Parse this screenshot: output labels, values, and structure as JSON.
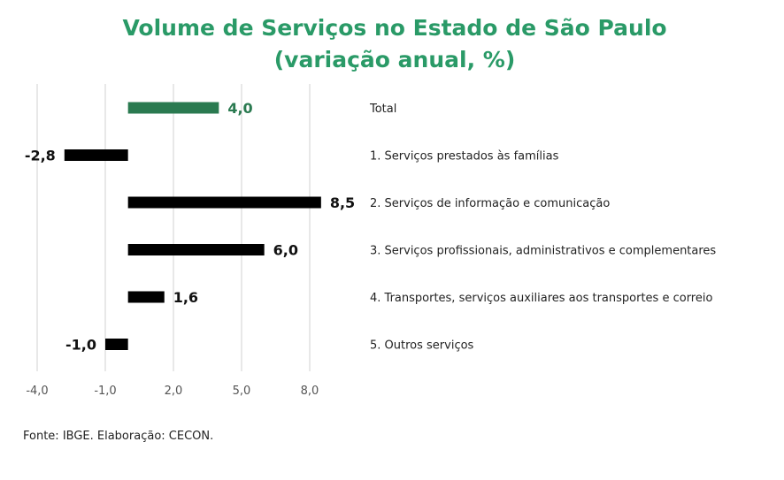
{
  "chart_data": {
    "type": "bar",
    "orientation": "horizontal",
    "title": "Volume de Serviços no Estado de São Paulo",
    "subtitle": "(variação anual, %)",
    "categories": [
      "Total",
      "1. Serviços prestados às famílias",
      "2. Serviços de informação e comunicação",
      "3. Serviços profissionais, administrativos e complementares",
      "4. Transportes, serviços auxiliares aos transportes e correio",
      "5. Outros serviços"
    ],
    "values": [
      4.0,
      -2.8,
      8.5,
      6.0,
      1.6,
      -1.0
    ],
    "value_labels": [
      "4,0",
      "-2,8",
      "8,5",
      "6,0",
      "1,6",
      "-1,0"
    ],
    "highlight_index": 0,
    "colors": {
      "highlight": "#2a7a50",
      "default": "#000000",
      "title": "#2a9a67"
    },
    "xlim": [
      -4.0,
      8.0
    ],
    "x_ticks": [
      -4.0,
      -1.0,
      2.0,
      5.0,
      8.0
    ],
    "x_tick_labels": [
      "-4,0",
      "-1,0",
      "2,0",
      "5,0",
      "8,0"
    ],
    "grid": true
  },
  "source": "Fonte: IBGE. Elaboração: CECON."
}
